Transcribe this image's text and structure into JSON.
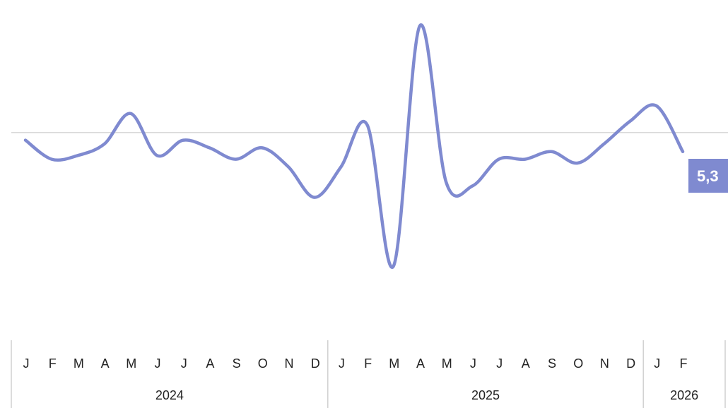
{
  "chart_data": {
    "type": "line",
    "title": "",
    "xlabel": "",
    "ylabel": "",
    "x": [
      "2024-01",
      "2024-02",
      "2024-03",
      "2024-04",
      "2024-05",
      "2024-06",
      "2024-07",
      "2024-08",
      "2024-09",
      "2024-10",
      "2024-11",
      "2024-12",
      "2025-01",
      "2025-02",
      "2025-03",
      "2025-04",
      "2025-05",
      "2025-06",
      "2025-07",
      "2025-08",
      "2025-09",
      "2025-10",
      "2025-11",
      "2025-12",
      "2026-01",
      "2026-02"
    ],
    "month_labels": [
      "J",
      "F",
      "M",
      "A",
      "M",
      "J",
      "J",
      "A",
      "S",
      "O",
      "N",
      "D",
      "J",
      "F",
      "M",
      "A",
      "M",
      "J",
      "J",
      "A",
      "S",
      "O",
      "N",
      "D",
      "J",
      "F"
    ],
    "year_groups": [
      {
        "label": "2024",
        "months": 12
      },
      {
        "label": "2025",
        "months": 12
      },
      {
        "label": "2026",
        "months": 2
      }
    ],
    "series": [
      {
        "values": [
          5.6,
          5.1,
          5.2,
          5.5,
          6.3,
          5.2,
          5.6,
          5.4,
          5.1,
          5.4,
          4.9,
          4.1,
          4.9,
          6.0,
          2.3,
          8.6,
          4.5,
          4.4,
          5.1,
          5.1,
          5.3,
          5.0,
          5.5,
          6.1,
          6.5,
          5.3
        ]
      }
    ],
    "ylim": [
      1.5,
      9.0
    ],
    "reference_line": 5.8,
    "grid": false,
    "legend": "none",
    "last_value_label": "5,3",
    "line_color": "#7F8AD0",
    "label_bg_color": "#7F8AD0"
  }
}
